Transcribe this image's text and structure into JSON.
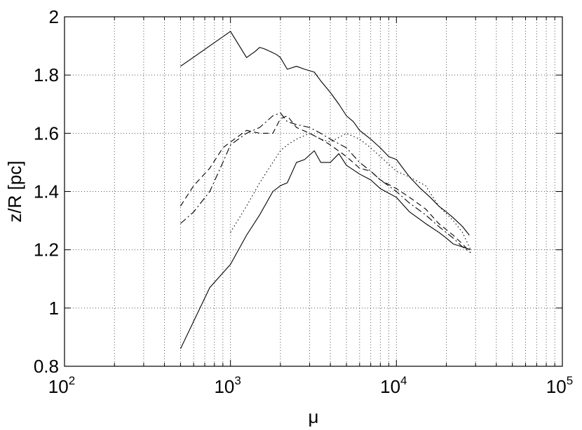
{
  "chart_data": {
    "type": "line",
    "xlabel": "μ",
    "ylabel": "z/R [pc]",
    "xscale": "log",
    "xlim": [
      100,
      100000
    ],
    "ylim": [
      0.8,
      2.0
    ],
    "grid": true,
    "x_ticks": [
      {
        "base": "10",
        "exp": "2",
        "value": 100
      },
      {
        "base": "10",
        "exp": "3",
        "value": 1000
      },
      {
        "base": "10",
        "exp": "4",
        "value": 10000
      },
      {
        "base": "10",
        "exp": "5",
        "value": 100000
      }
    ],
    "y_ticks": [
      {
        "label": "0.8",
        "value": 0.8
      },
      {
        "label": "1",
        "value": 1.0
      },
      {
        "label": "1.2",
        "value": 1.2
      },
      {
        "label": "1.4",
        "value": 1.4
      },
      {
        "label": "1.6",
        "value": 1.6
      },
      {
        "label": "1.8",
        "value": 1.8
      },
      {
        "label": "2",
        "value": 2.0
      }
    ],
    "series": [
      {
        "style": "solid",
        "x": [
          500,
          750,
          1000,
          1250,
          1400,
          1500,
          1600,
          1750,
          1900,
          2000,
          2200,
          2500,
          2800,
          3200,
          3500,
          4000,
          4500,
          5000,
          5500,
          6000,
          7000,
          8000,
          9000,
          10000,
          12000,
          14000,
          16000,
          18000,
          20000,
          22000,
          25000,
          27500
        ],
        "y": [
          1.83,
          1.9,
          1.95,
          1.86,
          1.88,
          1.895,
          1.89,
          1.88,
          1.87,
          1.86,
          1.82,
          1.83,
          1.82,
          1.81,
          1.78,
          1.74,
          1.7,
          1.66,
          1.64,
          1.61,
          1.58,
          1.55,
          1.52,
          1.51,
          1.45,
          1.41,
          1.38,
          1.35,
          1.33,
          1.31,
          1.28,
          1.25
        ]
      },
      {
        "style": "solid",
        "x": [
          500,
          750,
          1000,
          1250,
          1500,
          1800,
          2000,
          2200,
          2500,
          2800,
          3200,
          3500,
          4000,
          4500,
          5000,
          6000,
          7000,
          8000,
          10000,
          12000,
          15000,
          18000,
          20000,
          22000,
          25000,
          28000
        ],
        "y": [
          0.86,
          1.07,
          1.15,
          1.25,
          1.32,
          1.4,
          1.42,
          1.43,
          1.5,
          1.51,
          1.54,
          1.5,
          1.5,
          1.53,
          1.49,
          1.46,
          1.44,
          1.41,
          1.38,
          1.33,
          1.29,
          1.26,
          1.24,
          1.22,
          1.21,
          1.2
        ]
      },
      {
        "style": "dashed",
        "x": [
          500,
          600,
          750,
          900,
          1000,
          1250,
          1500,
          1800,
          2000,
          2200,
          2500,
          3000,
          3500,
          4000,
          5000,
          6000,
          7000,
          8000,
          10000,
          12000,
          15000,
          18000,
          22000,
          25000,
          28000
        ],
        "y": [
          1.35,
          1.42,
          1.48,
          1.55,
          1.57,
          1.61,
          1.6,
          1.6,
          1.65,
          1.66,
          1.62,
          1.6,
          1.58,
          1.56,
          1.52,
          1.48,
          1.47,
          1.44,
          1.41,
          1.38,
          1.34,
          1.29,
          1.25,
          1.22,
          1.19
        ]
      },
      {
        "style": "dashdot",
        "x": [
          500,
          600,
          750,
          900,
          1000,
          1250,
          1500,
          1800,
          2000,
          2200,
          2500,
          3000,
          3500,
          4000,
          5000,
          6000,
          7000,
          8000,
          10000,
          12000,
          15000,
          18000,
          22000,
          25000,
          28000
        ],
        "y": [
          1.29,
          1.33,
          1.4,
          1.5,
          1.56,
          1.6,
          1.62,
          1.66,
          1.67,
          1.64,
          1.63,
          1.62,
          1.6,
          1.58,
          1.55,
          1.5,
          1.47,
          1.44,
          1.4,
          1.36,
          1.32,
          1.28,
          1.24,
          1.21,
          1.19
        ]
      },
      {
        "style": "dotted",
        "x": [
          1000,
          1250,
          1500,
          1800,
          2000,
          2200,
          2500,
          3000,
          3500,
          4000,
          5000,
          6000,
          7000,
          8000,
          10000,
          12000,
          15000,
          18000,
          22000,
          25000,
          28000
        ],
        "y": [
          1.26,
          1.35,
          1.43,
          1.5,
          1.54,
          1.56,
          1.58,
          1.6,
          1.58,
          1.57,
          1.6,
          1.58,
          1.55,
          1.52,
          1.47,
          1.45,
          1.42,
          1.35,
          1.3,
          1.26,
          1.2
        ]
      }
    ]
  }
}
